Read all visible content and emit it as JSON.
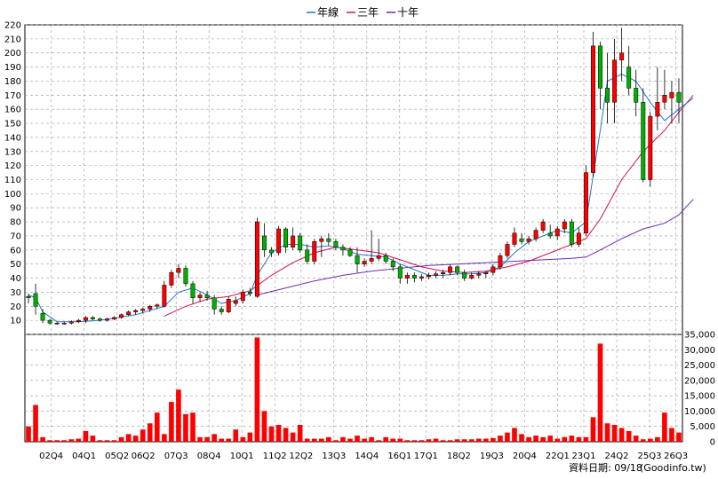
{
  "chart_data": {
    "type": "candlestick",
    "legend": [
      {
        "name": "年線",
        "color": "#1e78c8"
      },
      {
        "name": "三年",
        "color": "#d01050"
      },
      {
        "name": "十年",
        "color": "#6a2ab8"
      }
    ],
    "legend_position": "top-center",
    "grid": true,
    "up_color": "#ff0000",
    "down_color": "#00b000",
    "volume_color": "#ff0000",
    "price_axis": {
      "ylim": [
        0,
        220
      ],
      "ticks": [
        10,
        20,
        30,
        40,
        50,
        60,
        70,
        80,
        90,
        100,
        110,
        120,
        130,
        140,
        150,
        160,
        170,
        180,
        190,
        200,
        210,
        220
      ]
    },
    "volume_axis": {
      "ylim": [
        0,
        35000
      ],
      "ticks": [
        "0",
        "5,000",
        "10,000",
        "15,000",
        "20,000",
        "25,000",
        "30,000",
        "35,000"
      ]
    },
    "x_tick_labels": [
      "02Q4",
      "04Q1",
      "05Q2",
      "06Q2",
      "07Q3",
      "08Q4",
      "10Q1",
      "11Q2",
      "12Q2",
      "13Q3",
      "14Q4",
      "16Q1",
      "17Q1",
      "18Q2",
      "19Q3",
      "20Q4",
      "22Q1",
      "23Q1",
      "24Q2",
      "25Q3",
      "26Q3"
    ],
    "x_tick_positions": [
      4,
      9,
      14,
      18,
      23,
      28,
      33,
      38,
      42,
      47,
      52,
      57,
      61,
      66,
      71,
      76,
      81,
      85,
      90,
      95,
      99
    ],
    "candles": [
      [
        27,
        29,
        22,
        26
      ],
      [
        29,
        36,
        14,
        20
      ],
      [
        15,
        18,
        8,
        10
      ],
      [
        10,
        11,
        7,
        8
      ],
      [
        8,
        9,
        7,
        8
      ],
      [
        8,
        9,
        7,
        8
      ],
      [
        8,
        10,
        7,
        9
      ],
      [
        9,
        11,
        8,
        10
      ],
      [
        10,
        13,
        8,
        12
      ],
      [
        12,
        13,
        10,
        11
      ],
      [
        11,
        12,
        9,
        10
      ],
      [
        10,
        12,
        9,
        11
      ],
      [
        11,
        13,
        10,
        12
      ],
      [
        12,
        15,
        11,
        14
      ],
      [
        14,
        17,
        13,
        16
      ],
      [
        16,
        18,
        14,
        17
      ],
      [
        17,
        19,
        15,
        18
      ],
      [
        18,
        21,
        16,
        20
      ],
      [
        20,
        22,
        18,
        21
      ],
      [
        20,
        38,
        19,
        35
      ],
      [
        35,
        46,
        33,
        44
      ],
      [
        44,
        50,
        40,
        47
      ],
      [
        47,
        49,
        34,
        36
      ],
      [
        36,
        38,
        22,
        26
      ],
      [
        26,
        30,
        23,
        28
      ],
      [
        28,
        31,
        24,
        26
      ],
      [
        26,
        28,
        14,
        18
      ],
      [
        18,
        20,
        14,
        16
      ],
      [
        16,
        27,
        15,
        25
      ],
      [
        22,
        27,
        20,
        24
      ],
      [
        24,
        32,
        22,
        30
      ],
      [
        30,
        33,
        27,
        29
      ],
      [
        27,
        83,
        26,
        80
      ],
      [
        70,
        79,
        55,
        60
      ],
      [
        60,
        62,
        55,
        58
      ],
      [
        58,
        77,
        56,
        75
      ],
      [
        75,
        76,
        58,
        62
      ],
      [
        62,
        76,
        60,
        70
      ],
      [
        70,
        72,
        58,
        60
      ],
      [
        60,
        64,
        50,
        52
      ],
      [
        52,
        68,
        50,
        66
      ],
      [
        66,
        70,
        55,
        68
      ],
      [
        68,
        72,
        63,
        66
      ],
      [
        66,
        68,
        60,
        62
      ],
      [
        62,
        64,
        56,
        60
      ],
      [
        60,
        62,
        55,
        56
      ],
      [
        56,
        62,
        44,
        50
      ],
      [
        50,
        54,
        48,
        52
      ],
      [
        52,
        74,
        50,
        54
      ],
      [
        54,
        68,
        52,
        56
      ],
      [
        56,
        58,
        50,
        52
      ],
      [
        52,
        54,
        45,
        48
      ],
      [
        48,
        50,
        36,
        40
      ],
      [
        40,
        44,
        36,
        42
      ],
      [
        42,
        44,
        37,
        40
      ],
      [
        40,
        43,
        38,
        41
      ],
      [
        41,
        44,
        39,
        42
      ],
      [
        42,
        45,
        40,
        43
      ],
      [
        43,
        46,
        40,
        44
      ],
      [
        44,
        50,
        42,
        48
      ],
      [
        48,
        49,
        42,
        44
      ],
      [
        44,
        46,
        38,
        40
      ],
      [
        40,
        44,
        39,
        42
      ],
      [
        42,
        45,
        40,
        43
      ],
      [
        43,
        45,
        40,
        44
      ],
      [
        44,
        50,
        42,
        48
      ],
      [
        48,
        58,
        46,
        56
      ],
      [
        56,
        66,
        54,
        64
      ],
      [
        64,
        76,
        62,
        72
      ],
      [
        68,
        72,
        64,
        66
      ],
      [
        66,
        70,
        64,
        68
      ],
      [
        68,
        76,
        66,
        74
      ],
      [
        74,
        82,
        72,
        80
      ],
      [
        72,
        78,
        68,
        70
      ],
      [
        70,
        77,
        67,
        75
      ],
      [
        75,
        82,
        72,
        80
      ],
      [
        80,
        82,
        62,
        64
      ],
      [
        64,
        76,
        62,
        72
      ],
      [
        72,
        120,
        70,
        115
      ],
      [
        115,
        215,
        112,
        205
      ],
      [
        205,
        208,
        160,
        175
      ],
      [
        175,
        200,
        150,
        165
      ],
      [
        165,
        210,
        150,
        195
      ],
      [
        195,
        218,
        180,
        200
      ],
      [
        190,
        205,
        170,
        175
      ],
      [
        175,
        188,
        155,
        165
      ],
      [
        165,
        175,
        108,
        110
      ],
      [
        110,
        158,
        105,
        155
      ],
      [
        155,
        190,
        145,
        165
      ],
      [
        165,
        188,
        160,
        170
      ],
      [
        168,
        180,
        150,
        172
      ],
      [
        172,
        182,
        150,
        165
      ]
    ],
    "volume": [
      5,
      12,
      1.5,
      0.5,
      0.5,
      0.5,
      0.8,
      1.0,
      3.5,
      2.0,
      0.5,
      0.5,
      0.5,
      1.5,
      2.5,
      2.0,
      4.0,
      6.0,
      9.5,
      2.5,
      13,
      17,
      9.0,
      9.5,
      1.5,
      1.5,
      2.5,
      1.0,
      1.0,
      4.0,
      1.5,
      3.0,
      34,
      10,
      5.0,
      5.5,
      4.5,
      3.0,
      5.5,
      1.0,
      1.0,
      1.0,
      1.5,
      0.5,
      1.5,
      1.0,
      2.0,
      1.0,
      1.5,
      0.5,
      1.5,
      1.0,
      1.0,
      0.5,
      0.5,
      0.5,
      0.8,
      1.0,
      0.5,
      0.5,
      0.8,
      0.8,
      0.8,
      1.0,
      1.0,
      1.2,
      2.0,
      3.0,
      4.5,
      2.5,
      1.5,
      2.0,
      1.5,
      2.0,
      1.0,
      1.5,
      2.0,
      1.5,
      1.5,
      8.0,
      32,
      6.0,
      5.5,
      4.5,
      3.5,
      2.0,
      0.8,
      1.0,
      1.5,
      9.5,
      4.5,
      3.0
    ],
    "ma_year": [
      [
        0,
        28
      ],
      [
        1,
        26
      ],
      [
        2,
        16
      ],
      [
        4,
        9
      ],
      [
        7,
        9
      ],
      [
        10,
        10
      ],
      [
        15,
        14
      ],
      [
        19,
        20
      ],
      [
        21,
        30
      ],
      [
        23,
        33
      ],
      [
        25,
        28
      ],
      [
        27,
        22
      ],
      [
        29,
        24
      ],
      [
        31,
        29
      ],
      [
        32,
        42
      ],
      [
        34,
        58
      ],
      [
        36,
        64
      ],
      [
        38,
        64
      ],
      [
        40,
        62
      ],
      [
        42,
        63
      ],
      [
        44,
        61
      ],
      [
        46,
        57
      ],
      [
        48,
        56
      ],
      [
        50,
        55
      ],
      [
        52,
        50
      ],
      [
        54,
        46
      ],
      [
        56,
        42
      ],
      [
        58,
        42
      ],
      [
        60,
        43
      ],
      [
        62,
        43
      ],
      [
        64,
        44
      ],
      [
        66,
        48
      ],
      [
        68,
        58
      ],
      [
        70,
        66
      ],
      [
        72,
        70
      ],
      [
        74,
        74
      ],
      [
        76,
        72
      ],
      [
        78,
        80
      ],
      [
        80,
        145
      ],
      [
        81,
        180
      ],
      [
        83,
        185
      ],
      [
        85,
        180
      ],
      [
        87,
        165
      ],
      [
        89,
        152
      ],
      [
        91,
        160
      ],
      [
        93,
        168
      ]
    ],
    "ma_3yr": [
      [
        19,
        13
      ],
      [
        22,
        20
      ],
      [
        25,
        25
      ],
      [
        28,
        27
      ],
      [
        31,
        31
      ],
      [
        34,
        42
      ],
      [
        37,
        51
      ],
      [
        40,
        58
      ],
      [
        43,
        62
      ],
      [
        46,
        60
      ],
      [
        49,
        58
      ],
      [
        52,
        53
      ],
      [
        55,
        48
      ],
      [
        58,
        45
      ],
      [
        61,
        44
      ],
      [
        64,
        45
      ],
      [
        67,
        48
      ],
      [
        70,
        52
      ],
      [
        73,
        58
      ],
      [
        76,
        64
      ],
      [
        78,
        68
      ],
      [
        80,
        82
      ],
      [
        83,
        110
      ],
      [
        86,
        130
      ],
      [
        89,
        145
      ],
      [
        91,
        158
      ],
      [
        93,
        170
      ]
    ],
    "ma_10yr": [
      [
        32,
        28
      ],
      [
        36,
        33
      ],
      [
        40,
        38
      ],
      [
        44,
        42
      ],
      [
        48,
        45
      ],
      [
        52,
        47
      ],
      [
        56,
        49
      ],
      [
        60,
        50
      ],
      [
        64,
        51
      ],
      [
        68,
        52
      ],
      [
        72,
        53
      ],
      [
        76,
        54
      ],
      [
        78,
        55
      ],
      [
        80,
        60
      ],
      [
        83,
        68
      ],
      [
        86,
        75
      ],
      [
        89,
        79
      ],
      [
        91,
        85
      ],
      [
        93,
        96
      ]
    ]
  },
  "footer": {
    "label": "資料日期: 09/18",
    "source": "(Goodinfo.tw)"
  }
}
